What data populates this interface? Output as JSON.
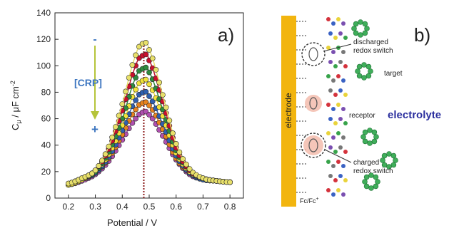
{
  "chart_data": {
    "type": "scatter",
    "panel_label": "a)",
    "xlabel": "Potential / V",
    "ylabel_main": "C",
    "ylabel_sub": "μ",
    "ylabel_unit": " / μF cm",
    "ylabel_sup": "-2",
    "xlim": [
      0.15,
      0.85
    ],
    "ylim": [
      0,
      140
    ],
    "x_ticks": [
      "0.2",
      "0.3",
      "0.4",
      "0.5",
      "0.6",
      "0.7",
      "0.8"
    ],
    "y_ticks": [
      "0",
      "20",
      "40",
      "60",
      "80",
      "100",
      "120",
      "140"
    ],
    "grid": false,
    "peak_line_x": 0.48,
    "arrow_label": "[CRP]",
    "arrow_top": "-",
    "arrow_bottom": "+",
    "series": [
      {
        "x": [
          0.2,
          0.25,
          0.3,
          0.35,
          0.4,
          0.45,
          0.48,
          0.5,
          0.55,
          0.6,
          0.65,
          0.7,
          0.75,
          0.8
        ],
        "y": [
          11,
          15,
          21,
          39,
          71,
          108,
          117,
          112,
          78,
          41,
          22,
          15,
          13,
          12
        ],
        "color": "#e8e06a"
      },
      {
        "x": [
          0.2,
          0.25,
          0.3,
          0.35,
          0.4,
          0.45,
          0.48,
          0.5,
          0.55,
          0.6,
          0.65,
          0.7,
          0.75,
          0.8
        ],
        "y": [
          11,
          15,
          21,
          37,
          66,
          100,
          108,
          104,
          73,
          38,
          21,
          15,
          13,
          12
        ],
        "color": "#c8102e"
      },
      {
        "x": [
          0.2,
          0.25,
          0.3,
          0.35,
          0.4,
          0.45,
          0.48,
          0.5,
          0.55,
          0.6,
          0.65,
          0.7,
          0.75,
          0.8
        ],
        "y": [
          11,
          15,
          20,
          35,
          60,
          91,
          98,
          95,
          67,
          36,
          21,
          15,
          13,
          12
        ],
        "color": "#2e8b3e"
      },
      {
        "x": [
          0.2,
          0.25,
          0.3,
          0.35,
          0.4,
          0.45,
          0.48,
          0.5,
          0.55,
          0.6,
          0.65,
          0.7,
          0.75,
          0.8
        ],
        "y": [
          10,
          14,
          20,
          33,
          55,
          82,
          89,
          86,
          62,
          34,
          20,
          15,
          13,
          12
        ],
        "color": "#f2e23a"
      },
      {
        "x": [
          0.2,
          0.25,
          0.3,
          0.35,
          0.4,
          0.45,
          0.48,
          0.5,
          0.55,
          0.6,
          0.65,
          0.7,
          0.75,
          0.8
        ],
        "y": [
          10,
          14,
          19,
          31,
          51,
          74,
          80,
          77,
          56,
          32,
          19,
          14,
          13,
          12
        ],
        "color": "#2f5fb0"
      },
      {
        "x": [
          0.2,
          0.25,
          0.3,
          0.35,
          0.4,
          0.45,
          0.48,
          0.5,
          0.55,
          0.6,
          0.65,
          0.7,
          0.75,
          0.8
        ],
        "y": [
          10,
          14,
          19,
          30,
          48,
          67,
          72,
          70,
          52,
          30,
          19,
          14,
          13,
          12
        ],
        "color": "#e8821e"
      },
      {
        "x": [
          0.2,
          0.25,
          0.3,
          0.35,
          0.4,
          0.45,
          0.48,
          0.5,
          0.55,
          0.6,
          0.65,
          0.7,
          0.75,
          0.8
        ],
        "y": [
          10,
          13,
          18,
          28,
          44,
          60,
          65,
          63,
          47,
          29,
          18,
          14,
          13,
          12
        ],
        "color": "#b04fb0"
      }
    ]
  },
  "schematic": {
    "panel_label": "b)",
    "electrode_label": "electrode",
    "discharged_label_1": "discharged",
    "discharged_label_2": "redox switch",
    "target_label": "target",
    "receptor_label": "receptor",
    "electrolyte_label": "electrolyte",
    "charged_label_1": "charged",
    "charged_label_2": "redox switch",
    "fc_label": "Fc/Fc",
    "fc_sup": "+",
    "colors": {
      "electrode": "#f2b50f",
      "electrolyte": "#2b2f9e",
      "arrow_label": "#3d76c0",
      "arrow": "#b5c43a"
    }
  }
}
